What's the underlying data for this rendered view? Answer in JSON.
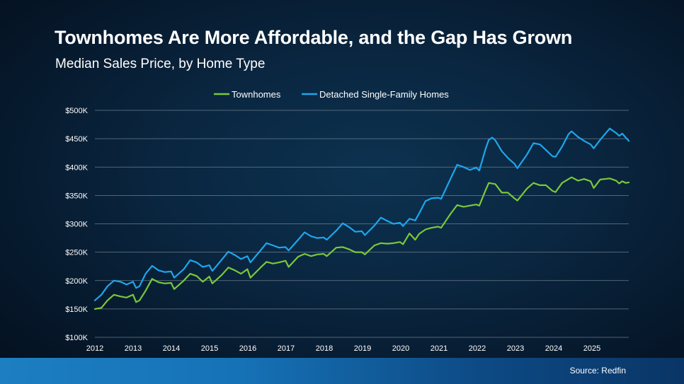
{
  "title": "Townhomes Are More Affordable, and the Gap Has Grown",
  "subtitle": "Median Sales Price, by Home Type",
  "source": "Source: Redfin",
  "colors": {
    "townhomes": "#7ac83a",
    "detached": "#1ea6ec",
    "grid": "#8c99a6",
    "text": "#ffffff"
  },
  "chart_data": {
    "type": "line",
    "title": "Median Sales Price, by Home Type",
    "xlabel": "",
    "ylabel": "",
    "grid": true,
    "legend_position": "top-center",
    "xlim": [
      2012,
      2026
    ],
    "ylim": [
      100000,
      500000
    ],
    "x_ticks": [
      "2012",
      "2013",
      "2014",
      "2015",
      "2016",
      "2017",
      "2018",
      "2019",
      "2020",
      "2021",
      "2022",
      "2023",
      "2024",
      "2025"
    ],
    "y_ticks": [
      "$100K",
      "$150K",
      "$200K",
      "$250K",
      "$300K",
      "$350K",
      "$400K",
      "$450K",
      "$500K"
    ],
    "y_tick_values": [
      100000,
      150000,
      200000,
      250000,
      300000,
      350000,
      400000,
      450000,
      500000
    ],
    "series": [
      {
        "name": "Townhomes",
        "color": "#7ac83a",
        "points": [
          [
            2012.0,
            150000
          ],
          [
            2012.17,
            152000
          ],
          [
            2012.33,
            165000
          ],
          [
            2012.5,
            175000
          ],
          [
            2012.67,
            172000
          ],
          [
            2012.83,
            170000
          ],
          [
            2013.0,
            175000
          ],
          [
            2013.08,
            162000
          ],
          [
            2013.17,
            165000
          ],
          [
            2013.33,
            182000
          ],
          [
            2013.5,
            203000
          ],
          [
            2013.67,
            197000
          ],
          [
            2013.83,
            195000
          ],
          [
            2014.0,
            196000
          ],
          [
            2014.08,
            185000
          ],
          [
            2014.33,
            200000
          ],
          [
            2014.5,
            212000
          ],
          [
            2014.67,
            208000
          ],
          [
            2014.83,
            198000
          ],
          [
            2015.0,
            207000
          ],
          [
            2015.08,
            195000
          ],
          [
            2015.33,
            210000
          ],
          [
            2015.5,
            223000
          ],
          [
            2015.67,
            218000
          ],
          [
            2015.83,
            212000
          ],
          [
            2016.0,
            220000
          ],
          [
            2016.08,
            205000
          ],
          [
            2016.33,
            222000
          ],
          [
            2016.5,
            233000
          ],
          [
            2016.67,
            230000
          ],
          [
            2016.83,
            232000
          ],
          [
            2017.0,
            235000
          ],
          [
            2017.08,
            224000
          ],
          [
            2017.33,
            242000
          ],
          [
            2017.5,
            247000
          ],
          [
            2017.67,
            243000
          ],
          [
            2017.83,
            246000
          ],
          [
            2018.0,
            247000
          ],
          [
            2018.08,
            243000
          ],
          [
            2018.33,
            258000
          ],
          [
            2018.5,
            259000
          ],
          [
            2018.67,
            255000
          ],
          [
            2018.83,
            250000
          ],
          [
            2019.0,
            250000
          ],
          [
            2019.08,
            246000
          ],
          [
            2019.33,
            262000
          ],
          [
            2019.5,
            266000
          ],
          [
            2019.67,
            265000
          ],
          [
            2019.83,
            266000
          ],
          [
            2020.0,
            268000
          ],
          [
            2020.08,
            264000
          ],
          [
            2020.25,
            283000
          ],
          [
            2020.4,
            272000
          ],
          [
            2020.5,
            282000
          ],
          [
            2020.67,
            290000
          ],
          [
            2020.83,
            293000
          ],
          [
            2021.0,
            295000
          ],
          [
            2021.08,
            293000
          ],
          [
            2021.33,
            318000
          ],
          [
            2021.5,
            333000
          ],
          [
            2021.67,
            330000
          ],
          [
            2021.83,
            332000
          ],
          [
            2022.0,
            334000
          ],
          [
            2022.08,
            332000
          ],
          [
            2022.25,
            360000
          ],
          [
            2022.33,
            372000
          ],
          [
            2022.5,
            370000
          ],
          [
            2022.67,
            355000
          ],
          [
            2022.83,
            355000
          ],
          [
            2023.0,
            345000
          ],
          [
            2023.08,
            341000
          ],
          [
            2023.33,
            362000
          ],
          [
            2023.5,
            372000
          ],
          [
            2023.67,
            368000
          ],
          [
            2023.83,
            368000
          ],
          [
            2024.0,
            358000
          ],
          [
            2024.08,
            356000
          ],
          [
            2024.25,
            372000
          ],
          [
            2024.5,
            382000
          ],
          [
            2024.67,
            376000
          ],
          [
            2024.83,
            379000
          ],
          [
            2025.0,
            375000
          ],
          [
            2025.08,
            363000
          ],
          [
            2025.25,
            378000
          ],
          [
            2025.5,
            380000
          ],
          [
            2025.67,
            376000
          ],
          [
            2025.75,
            371000
          ],
          [
            2025.83,
            375000
          ],
          [
            2025.92,
            372000
          ],
          [
            2026.0,
            373000
          ]
        ]
      },
      {
        "name": "Detached Single-Family Homes",
        "color": "#1ea6ec",
        "points": [
          [
            2012.0,
            165000
          ],
          [
            2012.17,
            175000
          ],
          [
            2012.33,
            190000
          ],
          [
            2012.5,
            200000
          ],
          [
            2012.67,
            198000
          ],
          [
            2012.83,
            193000
          ],
          [
            2013.0,
            198000
          ],
          [
            2013.08,
            187000
          ],
          [
            2013.17,
            190000
          ],
          [
            2013.33,
            212000
          ],
          [
            2013.5,
            226000
          ],
          [
            2013.67,
            218000
          ],
          [
            2013.83,
            215000
          ],
          [
            2014.0,
            216000
          ],
          [
            2014.08,
            205000
          ],
          [
            2014.33,
            220000
          ],
          [
            2014.5,
            236000
          ],
          [
            2014.67,
            232000
          ],
          [
            2014.83,
            224000
          ],
          [
            2015.0,
            227000
          ],
          [
            2015.08,
            217000
          ],
          [
            2015.33,
            237000
          ],
          [
            2015.5,
            251000
          ],
          [
            2015.67,
            245000
          ],
          [
            2015.83,
            238000
          ],
          [
            2016.0,
            243000
          ],
          [
            2016.08,
            232000
          ],
          [
            2016.33,
            252000
          ],
          [
            2016.5,
            266000
          ],
          [
            2016.67,
            262000
          ],
          [
            2016.83,
            258000
          ],
          [
            2017.0,
            259000
          ],
          [
            2017.08,
            253000
          ],
          [
            2017.33,
            272000
          ],
          [
            2017.5,
            285000
          ],
          [
            2017.67,
            278000
          ],
          [
            2017.83,
            275000
          ],
          [
            2018.0,
            276000
          ],
          [
            2018.08,
            272000
          ],
          [
            2018.33,
            288000
          ],
          [
            2018.5,
            301000
          ],
          [
            2018.67,
            294000
          ],
          [
            2018.83,
            286000
          ],
          [
            2019.0,
            287000
          ],
          [
            2019.08,
            280000
          ],
          [
            2019.33,
            297000
          ],
          [
            2019.5,
            311000
          ],
          [
            2019.67,
            305000
          ],
          [
            2019.83,
            300000
          ],
          [
            2020.0,
            302000
          ],
          [
            2020.08,
            296000
          ],
          [
            2020.25,
            309000
          ],
          [
            2020.4,
            306000
          ],
          [
            2020.5,
            318000
          ],
          [
            2020.67,
            340000
          ],
          [
            2020.83,
            345000
          ],
          [
            2021.0,
            346000
          ],
          [
            2021.08,
            344000
          ],
          [
            2021.33,
            380000
          ],
          [
            2021.5,
            404000
          ],
          [
            2021.67,
            400000
          ],
          [
            2021.83,
            395000
          ],
          [
            2022.0,
            399000
          ],
          [
            2022.08,
            394000
          ],
          [
            2022.25,
            433000
          ],
          [
            2022.33,
            448000
          ],
          [
            2022.42,
            452000
          ],
          [
            2022.5,
            447000
          ],
          [
            2022.67,
            428000
          ],
          [
            2022.83,
            416000
          ],
          [
            2023.0,
            406000
          ],
          [
            2023.08,
            398000
          ],
          [
            2023.33,
            422000
          ],
          [
            2023.5,
            442000
          ],
          [
            2023.67,
            440000
          ],
          [
            2023.83,
            430000
          ],
          [
            2024.0,
            419000
          ],
          [
            2024.08,
            418000
          ],
          [
            2024.25,
            436000
          ],
          [
            2024.42,
            458000
          ],
          [
            2024.5,
            463000
          ],
          [
            2024.67,
            453000
          ],
          [
            2024.83,
            446000
          ],
          [
            2025.0,
            440000
          ],
          [
            2025.08,
            433000
          ],
          [
            2025.25,
            448000
          ],
          [
            2025.5,
            468000
          ],
          [
            2025.67,
            460000
          ],
          [
            2025.75,
            455000
          ],
          [
            2025.83,
            459000
          ],
          [
            2025.92,
            452000
          ],
          [
            2026.0,
            446000
          ]
        ]
      }
    ]
  }
}
